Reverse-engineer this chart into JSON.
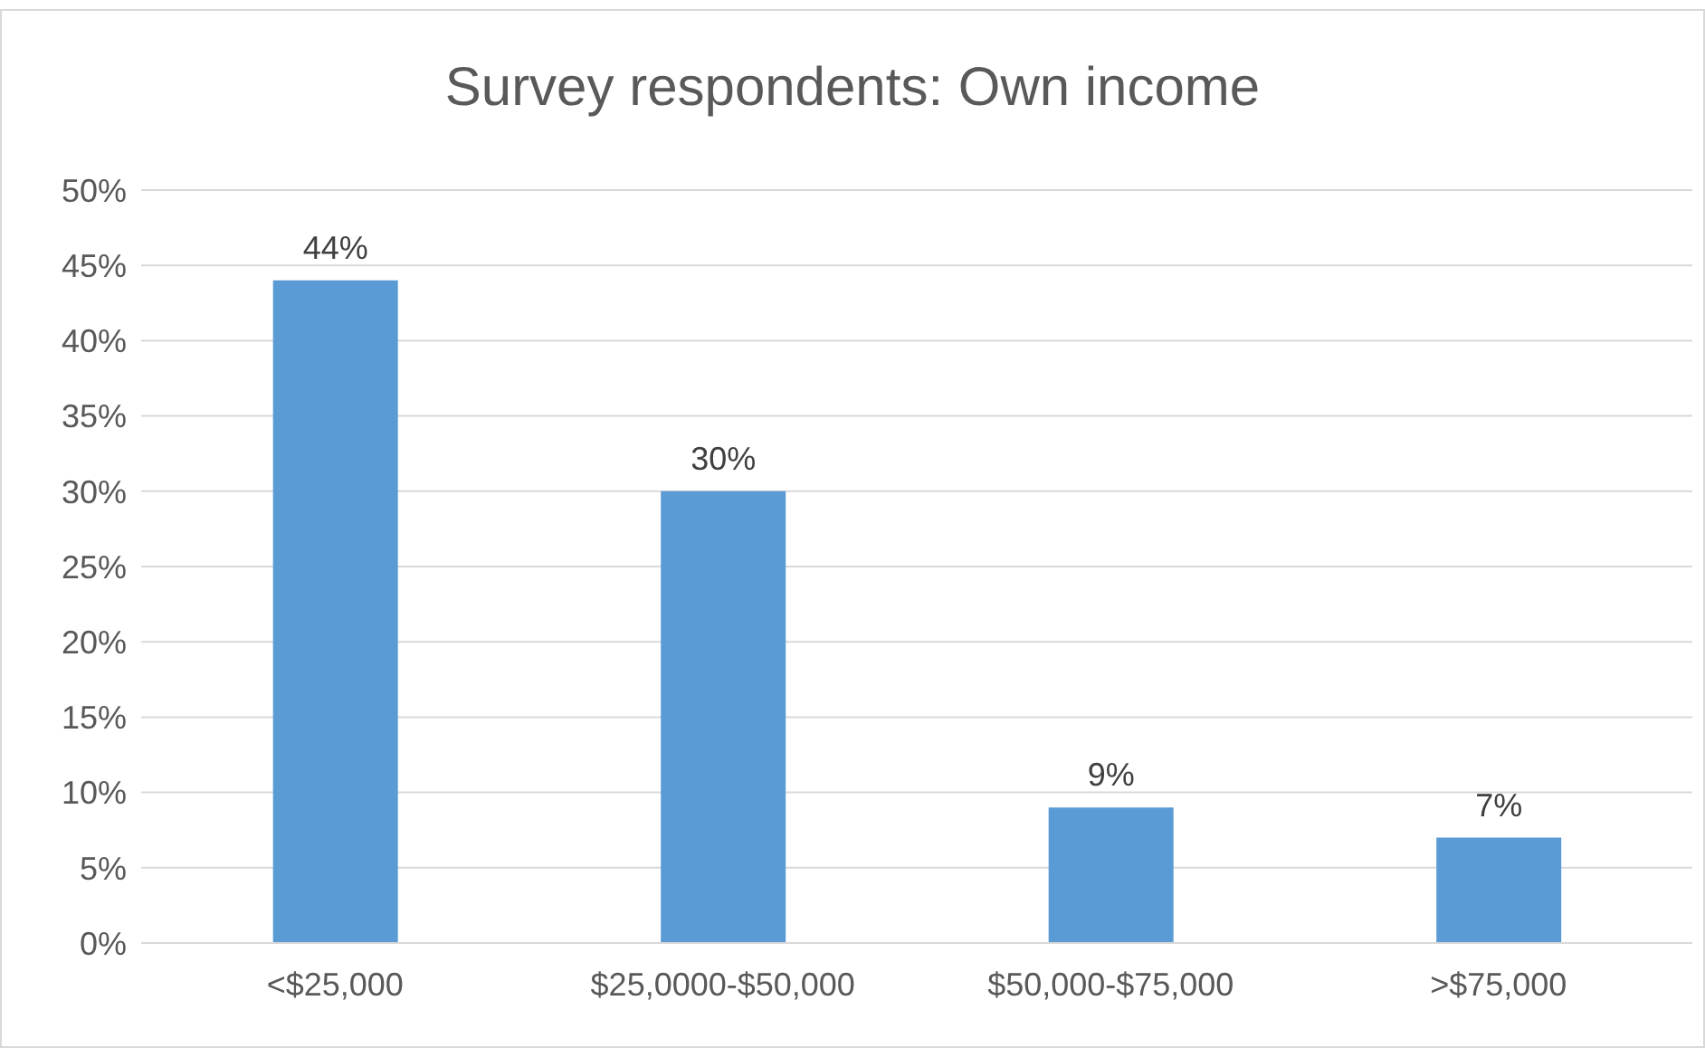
{
  "chart_data": {
    "type": "bar",
    "title": "Survey respondents: Own income",
    "categories": [
      "<$25,000",
      "$25,0000-$50,000",
      "$50,000-$75,000",
      ">$75,000"
    ],
    "values": [
      44,
      30,
      9,
      7
    ],
    "color": "#5b9bd5",
    "value_labels": [
      "44%",
      "30%",
      "9%",
      "7%"
    ],
    "ylim": [
      0,
      50
    ],
    "yticks": [
      {
        "value": 0,
        "label": "0%"
      },
      {
        "value": 5,
        "label": "5%"
      },
      {
        "value": 10,
        "label": "10%"
      },
      {
        "value": 15,
        "label": "15%"
      },
      {
        "value": 20,
        "label": "20%"
      },
      {
        "value": 25,
        "label": "25%"
      },
      {
        "value": 30,
        "label": "30%"
      },
      {
        "value": 35,
        "label": "35%"
      },
      {
        "value": 40,
        "label": "40%"
      },
      {
        "value": 45,
        "label": "45%"
      },
      {
        "value": 50,
        "label": "50%"
      }
    ],
    "grid": "y",
    "legend": false
  }
}
